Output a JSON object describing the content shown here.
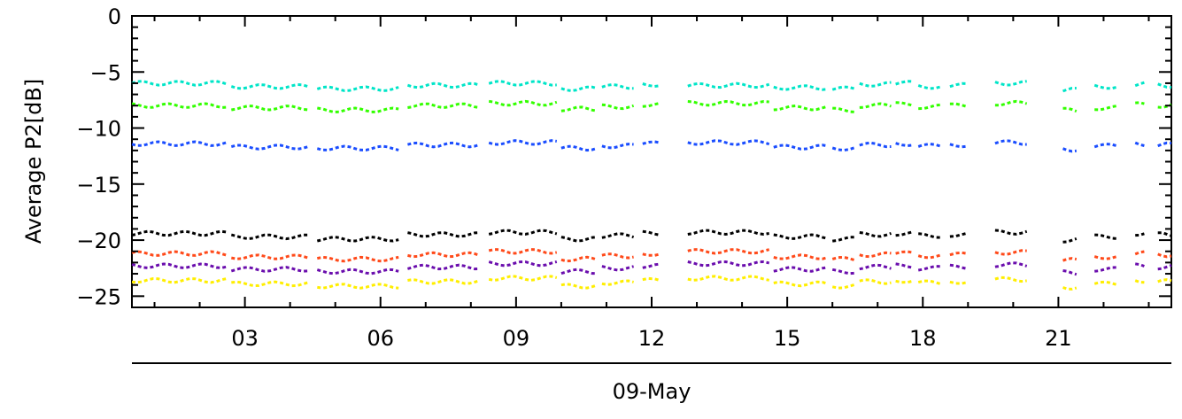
{
  "chart_data": {
    "type": "scatter",
    "title": "",
    "xlabel": "09-May",
    "ylabel": "Average  P2[dB]",
    "ylim": [
      -26,
      0
    ],
    "xlim": [
      0.5,
      23.5
    ],
    "x_unit": "hour of day (09-May)",
    "x_ticks": [
      3,
      6,
      9,
      12,
      15,
      18,
      21
    ],
    "x_tick_labels": [
      "03",
      "06",
      "09",
      "12",
      "15",
      "18",
      "21"
    ],
    "y_ticks": [
      0,
      -5,
      -10,
      -15,
      -20,
      -25
    ],
    "y_tick_labels": [
      "0",
      "−5",
      "−10",
      "−15",
      "−20",
      "−25"
    ],
    "grid": false,
    "legend": "none",
    "series": [
      {
        "color": "#00e5c8",
        "values": [
          -6.0,
          -6.3,
          -6.5,
          -6.2,
          -6.0,
          -6.5,
          -6.3,
          -6.1,
          -6.2,
          -6.4,
          -6.5,
          -6.1,
          -6.0,
          -6.3,
          -6.2,
          -6.0,
          -6.6,
          -6.3,
          -6.1,
          -6.2
        ]
      },
      {
        "color": "#33ff00",
        "values": [
          -8.0,
          -8.2,
          -8.4,
          -8.0,
          -7.8,
          -8.3,
          -8.1,
          -7.9,
          -7.8,
          -8.2,
          -8.4,
          -8.0,
          -7.9,
          -8.1,
          -8.0,
          -7.8,
          -8.4,
          -8.2,
          -7.9,
          -8.0
        ]
      },
      {
        "color": "#1a4dff",
        "values": [
          -11.4,
          -11.7,
          -11.8,
          -11.5,
          -11.3,
          -11.8,
          -11.6,
          -11.4,
          -11.3,
          -11.7,
          -11.8,
          -11.5,
          -11.4,
          -11.6,
          -11.5,
          -11.3,
          -11.9,
          -11.6,
          -11.4,
          -11.5
        ]
      },
      {
        "color": "#000000",
        "values": [
          -19.4,
          -19.7,
          -19.9,
          -19.5,
          -19.3,
          -19.9,
          -19.6,
          -19.4,
          -19.3,
          -19.7,
          -19.9,
          -19.5,
          -19.4,
          -19.6,
          -19.5,
          -19.3,
          -20.0,
          -19.7,
          -19.4,
          -19.5
        ]
      },
      {
        "color": "#ff4a1a",
        "values": [
          -21.2,
          -21.5,
          -21.7,
          -21.3,
          -21.0,
          -21.7,
          -21.4,
          -21.2,
          -21.0,
          -21.5,
          -21.7,
          -21.3,
          -21.2,
          -21.4,
          -21.3,
          -21.1,
          -21.8,
          -21.5,
          -21.2,
          -21.3
        ]
      },
      {
        "color": "#6a0dad",
        "values": [
          -22.3,
          -22.6,
          -22.8,
          -22.4,
          -22.1,
          -22.8,
          -22.5,
          -22.3,
          -22.1,
          -22.6,
          -22.8,
          -22.4,
          -22.3,
          -22.5,
          -22.4,
          -22.2,
          -22.9,
          -22.6,
          -22.3,
          -22.4
        ]
      },
      {
        "color": "#ffee00",
        "values": [
          -23.6,
          -23.9,
          -24.1,
          -23.7,
          -23.4,
          -24.1,
          -23.8,
          -23.6,
          -23.4,
          -23.9,
          -24.1,
          -23.7,
          -23.6,
          -23.8,
          -23.7,
          -23.5,
          -24.2,
          -23.9,
          -23.6,
          -23.7
        ]
      }
    ],
    "x_segments": [
      [
        0.5,
        2.6
      ],
      [
        2.7,
        4.4
      ],
      [
        4.6,
        6.4
      ],
      [
        6.6,
        8.2
      ],
      [
        8.4,
        9.9
      ],
      [
        10.0,
        10.8
      ],
      [
        10.9,
        11.6
      ],
      [
        11.8,
        12.2
      ],
      [
        12.8,
        14.6
      ],
      [
        14.7,
        15.9
      ],
      [
        16.0,
        16.5
      ],
      [
        16.6,
        17.3
      ],
      [
        17.4,
        17.8
      ],
      [
        17.9,
        18.4
      ],
      [
        18.6,
        19.0
      ],
      [
        19.6,
        20.3
      ],
      [
        21.1,
        21.4
      ],
      [
        21.8,
        22.3
      ],
      [
        22.7,
        22.9
      ],
      [
        23.2,
        23.5
      ]
    ]
  }
}
